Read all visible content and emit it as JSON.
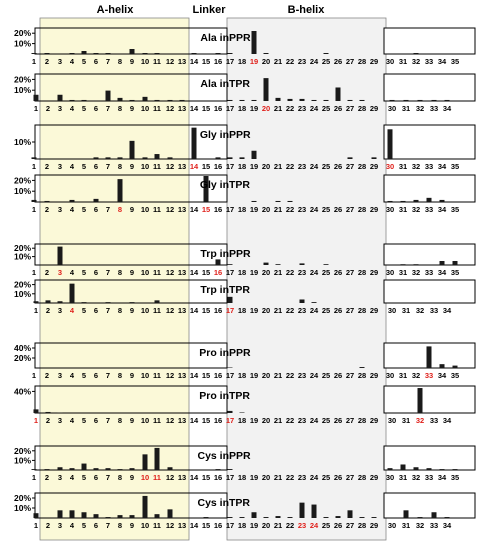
{
  "headers": {
    "a_helix": "A-helix",
    "linker": "Linker",
    "b_helix": "B-helix"
  },
  "colors": {
    "a_helix_fill": "#fbf9d8",
    "b_helix_fill": "#f2f2f2",
    "bar": "#1a1a1a",
    "highlight_tick": "#e0201b",
    "axis": "#000000"
  },
  "chart_data": [
    {
      "type": "bar",
      "label": "Ala in PPR",
      "yticks": [
        "20%",
        "10%"
      ],
      "ylim": [
        0,
        25
      ],
      "ticks": [
        "1",
        "2",
        "3",
        "4",
        "5",
        "6",
        "7",
        "8",
        "9",
        "10",
        "11",
        "12",
        "13",
        "14",
        "15",
        "16",
        "17",
        "18",
        "19",
        "20",
        "21",
        "22",
        "23",
        "24",
        "25",
        "26",
        "27",
        "28",
        "29",
        "30",
        "31",
        "32",
        "33",
        "34",
        "35"
      ],
      "highlight": [
        "19"
      ],
      "values": [
        1,
        1,
        0,
        1,
        3,
        1,
        1,
        0,
        5,
        1,
        1,
        0,
        0,
        1,
        0,
        1,
        1,
        0,
        23,
        1,
        0,
        0,
        0,
        0,
        1,
        0,
        0,
        0,
        0,
        0,
        0,
        1,
        0,
        0,
        0
      ]
    },
    {
      "type": "bar",
      "label": "Ala in TPR",
      "yticks": [
        "20%",
        "10%"
      ],
      "ylim": [
        0,
        25
      ],
      "ticks": [
        "1",
        "2",
        "3",
        "4",
        "5",
        "6",
        "7",
        "8",
        "9",
        "10",
        "11",
        "12",
        "13",
        "14",
        "15",
        "16",
        "17",
        "18",
        "19",
        "20",
        "21",
        "22",
        "23",
        "24",
        "25",
        "26",
        "27",
        "28",
        "29",
        "30",
        "31",
        "32",
        "33",
        "34"
      ],
      "highlight": [
        "20"
      ],
      "values": [
        6,
        0,
        6,
        1,
        1,
        0,
        10,
        3,
        1,
        4,
        1,
        1,
        1,
        0,
        0,
        0,
        1,
        1,
        1,
        22,
        3,
        2,
        2,
        1,
        1,
        13,
        1,
        1,
        0,
        1,
        1,
        1,
        1,
        1
      ]
    },
    {
      "type": "bar",
      "label": "Gly in PPR",
      "yticks": [
        "10%"
      ],
      "ylim": [
        0,
        20
      ],
      "ticks": [
        "1",
        "2",
        "3",
        "4",
        "5",
        "6",
        "7",
        "8",
        "9",
        "10",
        "11",
        "12",
        "13",
        "14",
        "15",
        "16",
        "17",
        "18",
        "19",
        "20",
        "21",
        "22",
        "23",
        "24",
        "25",
        "26",
        "27",
        "28",
        "29",
        "30",
        "31",
        "32",
        "33",
        "34",
        "35"
      ],
      "highlight": [
        "14",
        "30"
      ],
      "values": [
        1,
        0,
        0,
        0,
        0,
        1,
        1,
        1,
        11,
        1,
        3,
        1,
        0,
        19,
        0,
        1,
        1,
        1,
        5,
        0,
        0,
        0,
        0,
        0,
        0,
        0,
        1,
        0,
        1,
        18,
        0,
        0,
        0,
        0,
        0
      ]
    },
    {
      "type": "bar",
      "label": "Gly in TPR",
      "yticks": [
        "20%",
        "10%"
      ],
      "ylim": [
        0,
        25
      ],
      "ticks": [
        "1",
        "2",
        "3",
        "4",
        "5",
        "6",
        "7",
        "8",
        "9",
        "10",
        "11",
        "12",
        "13",
        "14",
        "15",
        "16",
        "17",
        "18",
        "19",
        "20",
        "21",
        "22",
        "23",
        "24",
        "25",
        "26",
        "27",
        "28",
        "29",
        "30",
        "31",
        "32",
        "33",
        "34",
        "35"
      ],
      "highlight": [
        "8",
        "15"
      ],
      "values": [
        2,
        1,
        0,
        2,
        0,
        3,
        0,
        22,
        0,
        0,
        0,
        0,
        0,
        0,
        25,
        0,
        0,
        0,
        1,
        0,
        1,
        1,
        0,
        0,
        0,
        0,
        0,
        0,
        0,
        1,
        1,
        2,
        4,
        2,
        0
      ]
    },
    {
      "type": "bar",
      "label": "Trp in PPR",
      "yticks": [
        "20%",
        "10%"
      ],
      "ylim": [
        0,
        25
      ],
      "ticks": [
        "1",
        "2",
        "3",
        "4",
        "5",
        "6",
        "7",
        "8",
        "9",
        "10",
        "11",
        "12",
        "13",
        "14",
        "15",
        "16",
        "17",
        "18",
        "19",
        "20",
        "21",
        "22",
        "23",
        "24",
        "25",
        "26",
        "27",
        "28",
        "29",
        "30",
        "31",
        "32",
        "33",
        "34",
        "35"
      ],
      "highlight": [
        "3",
        "16"
      ],
      "values": [
        0,
        0,
        23,
        0,
        0,
        0,
        0,
        0,
        0,
        0,
        0,
        0,
        0,
        0,
        0,
        7,
        1,
        0,
        0,
        3,
        1,
        0,
        2,
        0,
        1,
        0,
        0,
        0,
        0,
        0,
        1,
        1,
        0,
        5,
        5
      ]
    },
    {
      "type": "bar",
      "label": "Trp in TPR",
      "yticks": [
        "20%",
        "10%"
      ],
      "ylim": [
        0,
        25
      ],
      "ticks": [
        "1",
        "2",
        "3",
        "4",
        "5",
        "6",
        "7",
        "8",
        "9",
        "10",
        "11",
        "12",
        "13",
        "14",
        "15",
        "16",
        "17",
        "18",
        "19",
        "20",
        "21",
        "22",
        "23",
        "24",
        "25",
        "26",
        "27",
        "28",
        "29",
        "30",
        "31",
        "32",
        "33",
        "34"
      ],
      "highlight": [
        "4",
        "17"
      ],
      "values": [
        2,
        3,
        2,
        22,
        1,
        0,
        1,
        0,
        1,
        0,
        3,
        0,
        0,
        0,
        0,
        0,
        7,
        0,
        0,
        0,
        0,
        0,
        4,
        1,
        0,
        0,
        0,
        0,
        0,
        0,
        0,
        0,
        0,
        0
      ]
    },
    {
      "type": "bar",
      "label": "Pro in PPR",
      "yticks": [
        "40%",
        "20%"
      ],
      "ylim": [
        0,
        50
      ],
      "ticks": [
        "1",
        "2",
        "3",
        "4",
        "5",
        "6",
        "7",
        "8",
        "9",
        "10",
        "11",
        "12",
        "13",
        "14",
        "15",
        "16",
        "17",
        "18",
        "19",
        "20",
        "21",
        "22",
        "23",
        "24",
        "25",
        "26",
        "27",
        "28",
        "29",
        "30",
        "31",
        "32",
        "33",
        "34",
        "35"
      ],
      "highlight": [
        "33"
      ],
      "values": [
        0,
        0,
        0,
        0,
        0,
        0,
        0,
        0,
        0,
        0,
        0,
        0,
        0,
        0,
        0,
        0,
        1,
        0,
        0,
        0,
        0,
        0,
        0,
        0,
        0,
        0,
        0,
        2,
        0,
        0,
        0,
        0,
        45,
        8,
        5
      ]
    },
    {
      "type": "bar",
      "label": "Pro in TPR",
      "yticks": [
        "40%"
      ],
      "ylim": [
        0,
        50
      ],
      "ticks": [
        "1",
        "2",
        "3",
        "4",
        "5",
        "6",
        "7",
        "8",
        "9",
        "10",
        "11",
        "12",
        "13",
        "14",
        "15",
        "16",
        "17",
        "18",
        "19",
        "20",
        "21",
        "22",
        "23",
        "24",
        "25",
        "26",
        "27",
        "28",
        "29",
        "30",
        "31",
        "32",
        "33",
        "34"
      ],
      "highlight": [
        "1",
        "17",
        "32"
      ],
      "values": [
        7,
        2,
        1,
        0,
        0,
        0,
        0,
        0,
        0,
        0,
        0,
        0,
        0,
        0,
        0,
        0,
        4,
        1,
        0,
        0,
        0,
        0,
        0,
        0,
        0,
        0,
        0,
        0,
        0,
        0,
        0,
        48,
        0,
        0
      ]
    },
    {
      "type": "bar",
      "label": "Cys in PPR",
      "yticks": [
        "20%",
        "10%"
      ],
      "ylim": [
        0,
        25
      ],
      "ticks": [
        "1",
        "2",
        "3",
        "4",
        "5",
        "6",
        "7",
        "8",
        "9",
        "10",
        "11",
        "12",
        "13",
        "14",
        "15",
        "16",
        "17",
        "18",
        "19",
        "20",
        "21",
        "22",
        "23",
        "24",
        "25",
        "26",
        "27",
        "28",
        "29",
        "30",
        "31",
        "32",
        "33",
        "34",
        "35"
      ],
      "highlight": [
        "10",
        "11"
      ],
      "values": [
        1,
        1,
        3,
        2,
        7,
        2,
        2,
        1,
        2,
        17,
        24,
        3,
        0,
        0,
        0,
        1,
        1,
        0,
        0,
        0,
        0,
        0,
        0,
        0,
        0,
        0,
        0,
        0,
        0,
        2,
        6,
        3,
        2,
        1,
        1
      ]
    },
    {
      "type": "bar",
      "label": "Cys in TPR",
      "yticks": [
        "20%",
        "10%"
      ],
      "ylim": [
        0,
        25
      ],
      "ticks": [
        "1",
        "2",
        "3",
        "4",
        "5",
        "6",
        "7",
        "8",
        "9",
        "10",
        "11",
        "12",
        "13",
        "14",
        "15",
        "16",
        "17",
        "18",
        "19",
        "20",
        "21",
        "22",
        "23",
        "24",
        "25",
        "26",
        "27",
        "28",
        "29",
        "30",
        "31",
        "32",
        "33",
        "34"
      ],
      "highlight": [
        "23",
        "24"
      ],
      "values": [
        5,
        0,
        8,
        8,
        6,
        4,
        1,
        3,
        3,
        23,
        4,
        9,
        0,
        0,
        1,
        0,
        1,
        1,
        6,
        1,
        2,
        1,
        16,
        14,
        1,
        2,
        8,
        1,
        1,
        0,
        8,
        1,
        6,
        1
      ]
    }
  ]
}
